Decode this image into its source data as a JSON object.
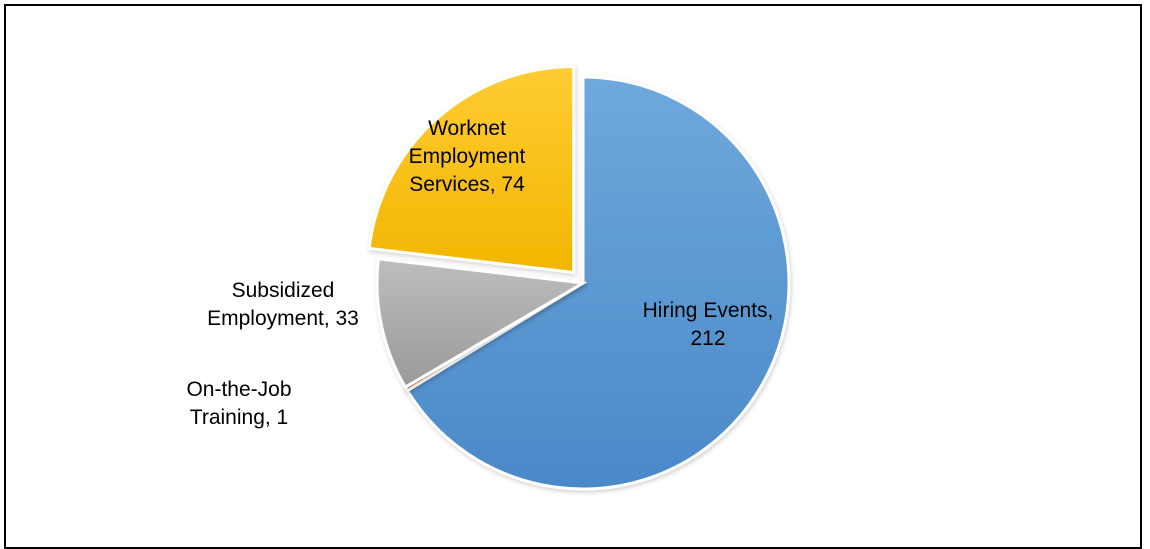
{
  "chart_data": {
    "type": "pie",
    "title": "",
    "slices": [
      {
        "name": "Hiring Events",
        "value": 212,
        "label_lines": [
          "Hiring Events,",
          "212"
        ],
        "color": "#5B9BD5",
        "explode": false
      },
      {
        "name": "On-the-Job Training",
        "value": 1,
        "label_lines": [
          "On-the-Job",
          "Training, 1"
        ],
        "color": "#ED7D31",
        "explode": false
      },
      {
        "name": "Subsidized Employment",
        "value": 33,
        "label_lines": [
          "Subsidized",
          "Employment, 33"
        ],
        "color": "#A5A5A5",
        "explode": false
      },
      {
        "name": "Worknet Employment Services",
        "value": 74,
        "label_lines": [
          "Worknet",
          "Employment",
          "Services, 74"
        ],
        "color": "#FFC000",
        "explode": true
      }
    ],
    "start_angle": "12 o'clock",
    "direction": "clockwise",
    "legend": "none",
    "label_placement": [
      "inside",
      "outside-left",
      "outside-left",
      "inside"
    ]
  }
}
